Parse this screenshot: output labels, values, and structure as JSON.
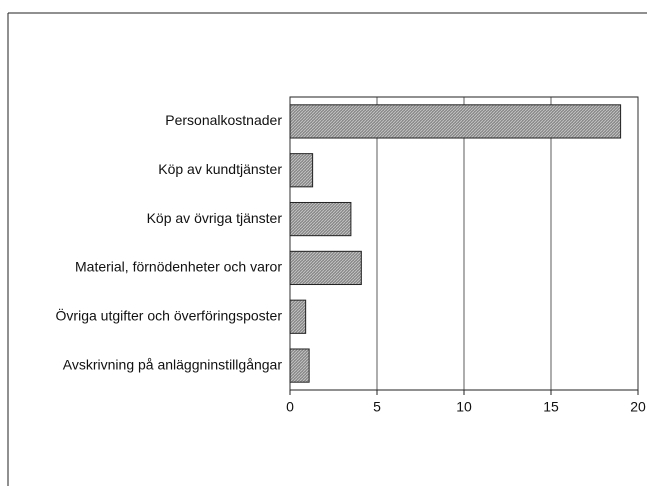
{
  "chart_data": {
    "type": "bar",
    "orientation": "horizontal",
    "categories": [
      "Personalkostnader",
      "Köp av kundtjänster",
      "Köp av övriga tjänster",
      "Material, förnödenheter och varor",
      "Övriga utgifter och överföringsposter",
      "Avskrivning på anläggninstillgångar"
    ],
    "values": [
      19.0,
      1.3,
      3.5,
      4.1,
      0.9,
      1.1
    ],
    "color": "#9a9a9a",
    "xlim": [
      0,
      20
    ],
    "xticks": [
      0,
      5,
      10,
      15,
      20
    ],
    "grid": true
  }
}
